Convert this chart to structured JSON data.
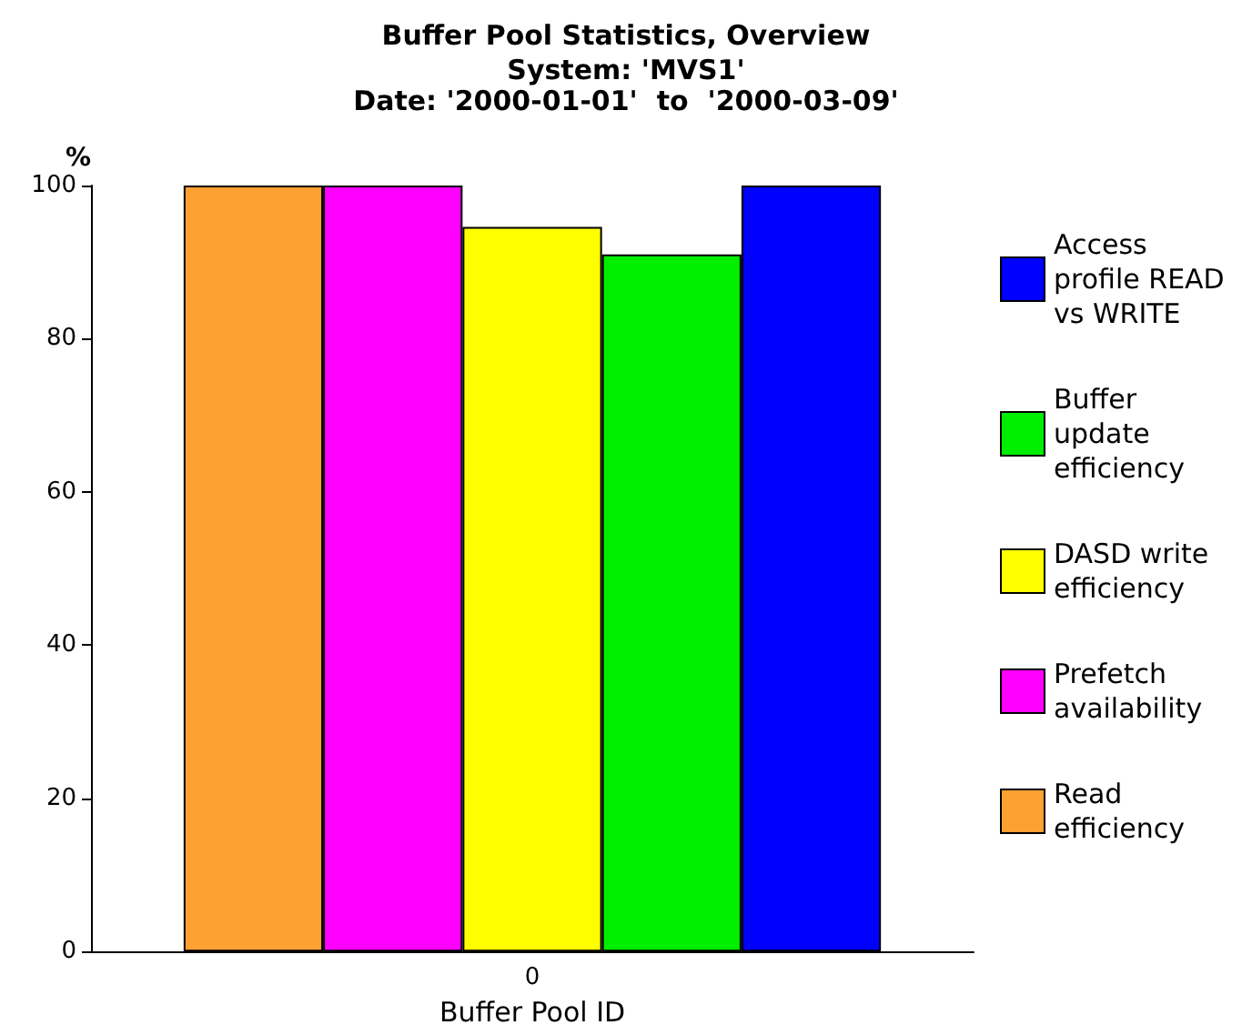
{
  "chart_data": {
    "type": "bar",
    "title": "Buffer Pool Statistics, Overview",
    "subtitle": "System: 'MVS1'\nDate: '2000-01-01'  to  '2000-03-09'",
    "xlabel": "Buffer Pool ID",
    "ylabel": "%",
    "categories": [
      "0"
    ],
    "series": [
      {
        "name": "Read efficiency",
        "color": "#ffa033",
        "values": [
          100
        ]
      },
      {
        "name": "Prefetch availability",
        "color": "#ff00ff",
        "values": [
          100
        ]
      },
      {
        "name": "DASD write efficiency",
        "color": "#ffff00",
        "values": [
          94.6
        ]
      },
      {
        "name": "Buffer update efficiency",
        "color": "#00ee00",
        "values": [
          91
        ]
      },
      {
        "name": "Access profile READ vs WRITE",
        "color": "#0000ff",
        "values": [
          100
        ]
      }
    ],
    "ylim": [
      0,
      100
    ],
    "yticks": [
      0,
      20,
      40,
      60,
      80,
      100
    ],
    "grid": false,
    "legend": "right"
  }
}
